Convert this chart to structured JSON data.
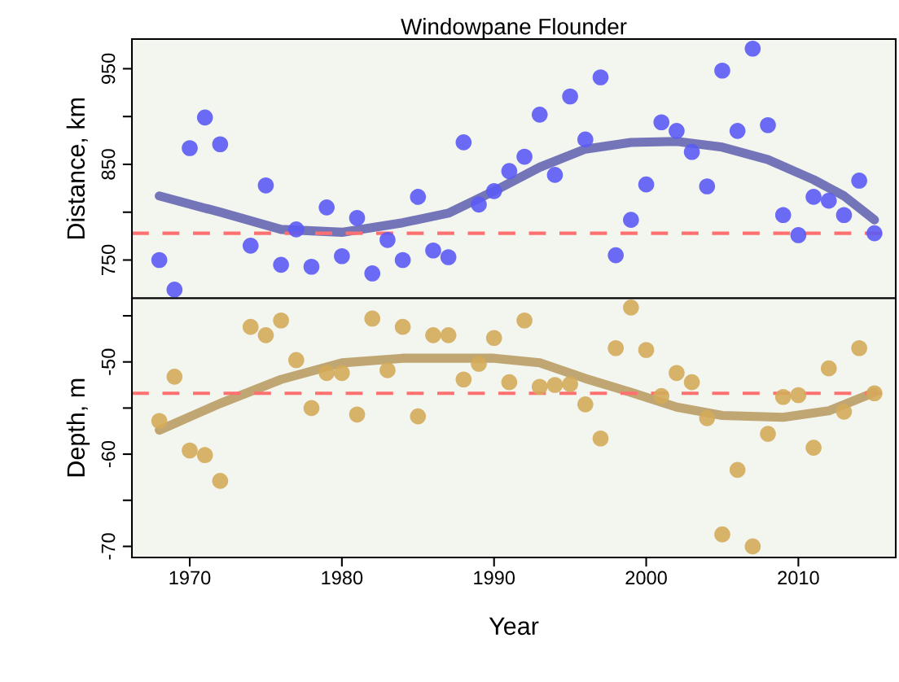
{
  "chart_data": [
    {
      "type": "scatter",
      "title": "Windowpane Flounder",
      "ylabel": "Distance, km",
      "xlim": [
        1966.2,
        2016.4
      ],
      "ylim": [
        710,
        981
      ],
      "xticks": [
        1970,
        1980,
        1990,
        2000,
        2010
      ],
      "yticks": [
        750,
        {
          "value": 800,
          "label": null
        },
        850,
        {
          "value": 900,
          "label": null
        },
        950
      ],
      "tick_labels": "y",
      "grid": false,
      "series": [
        {
          "marker": "circle",
          "color": "#5b5bf5",
          "x": [
            1968,
            1969,
            1970,
            1971,
            1972,
            1974,
            1975,
            1976,
            1977,
            1978,
            1979,
            1980,
            1981,
            1982,
            1983,
            1984,
            1985,
            1986,
            1987,
            1988,
            1989,
            1990,
            1991,
            1992,
            1993,
            1994,
            1995,
            1996,
            1997,
            1998,
            1999,
            2000,
            2001,
            2002,
            2003,
            2004,
            2005,
            2006,
            2007,
            2008,
            2009,
            2010,
            2011,
            2012,
            2013,
            2014,
            2015
          ],
          "values": [
            750,
            719,
            867,
            899,
            871,
            765,
            828,
            745,
            782,
            743,
            805,
            754,
            794,
            736,
            771,
            750,
            816,
            760,
            753,
            873,
            808,
            822,
            843,
            858,
            902,
            839,
            921,
            876,
            941,
            755,
            792,
            829,
            894,
            885,
            863,
            827,
            948,
            885,
            971,
            891,
            797,
            776,
            816,
            812,
            797,
            833,
            778
          ]
        },
        {
          "type": "line",
          "color": "#7474b8",
          "x": [
            1968,
            1972,
            1976,
            1980,
            1984,
            1987,
            1990,
            1993,
            1996,
            1999,
            2002,
            2005,
            2008,
            2011,
            2013,
            2015
          ],
          "values": [
            817,
            800,
            782,
            779,
            789,
            799,
            822,
            847,
            866,
            873,
            874,
            868,
            855,
            834,
            817,
            792
          ]
        }
      ],
      "ref_lines": [
        {
          "axis": "y",
          "value": 778,
          "color": "#ff7070",
          "line_style": "dashed"
        }
      ]
    },
    {
      "type": "scatter",
      "xlabel": "Year",
      "ylabel": "Depth, m",
      "xlim": [
        1966.2,
        2016.4
      ],
      "ylim": [
        -71.2,
        -43.1
      ],
      "xticks": [
        1970,
        1980,
        1990,
        2000,
        2010
      ],
      "yticks": [
        {
          "value": -45,
          "label": null
        },
        -50,
        {
          "value": -55,
          "label": null
        },
        -60,
        {
          "value": -65,
          "label": null
        },
        -70
      ],
      "grid": false,
      "series": [
        {
          "marker": "circle",
          "color": "#d4ab5a",
          "x": [
            1968,
            1969,
            1970,
            1971,
            1972,
            1974,
            1975,
            1976,
            1977,
            1978,
            1979,
            1980,
            1981,
            1982,
            1983,
            1984,
            1985,
            1986,
            1987,
            1988,
            1989,
            1990,
            1991,
            1992,
            1993,
            1994,
            1995,
            1996,
            1997,
            1998,
            1999,
            2000,
            2001,
            2002,
            2003,
            2004,
            2005,
            2006,
            2007,
            2008,
            2009,
            2010,
            2011,
            2012,
            2013,
            2014,
            2015
          ],
          "values": [
            -56.4,
            -51.6,
            -59.6,
            -60.1,
            -62.9,
            -46.2,
            -47.1,
            -45.5,
            -49.8,
            -55.0,
            -51.2,
            -51.2,
            -55.7,
            -45.3,
            -50.9,
            -46.2,
            -55.9,
            -47.1,
            -47.1,
            -51.9,
            -50.2,
            -47.4,
            -52.2,
            -45.5,
            -52.7,
            -52.5,
            -52.4,
            -54.6,
            -58.3,
            -48.5,
            -44.1,
            -48.7,
            -53.7,
            -51.2,
            -52.2,
            -56.1,
            -68.7,
            -61.7,
            -70.0,
            -57.8,
            -53.8,
            -53.6,
            -59.3,
            -50.7,
            -55.4,
            -48.5,
            -53.4
          ]
        },
        {
          "type": "line",
          "color": "#bfa673",
          "x": [
            1968,
            1972,
            1976,
            1980,
            1984,
            1990,
            1993,
            1996,
            1999,
            2002,
            2005,
            2009,
            2012,
            2015
          ],
          "values": [
            -57.4,
            -54.5,
            -51.9,
            -50.1,
            -49.6,
            -49.6,
            -50.1,
            -51.8,
            -53.3,
            -54.9,
            -55.8,
            -56.0,
            -55.3,
            -53.3
          ]
        }
      ],
      "ref_lines": [
        {
          "axis": "y",
          "value": -53.4,
          "color": "#ff7070",
          "line_style": "dashed"
        }
      ]
    }
  ]
}
